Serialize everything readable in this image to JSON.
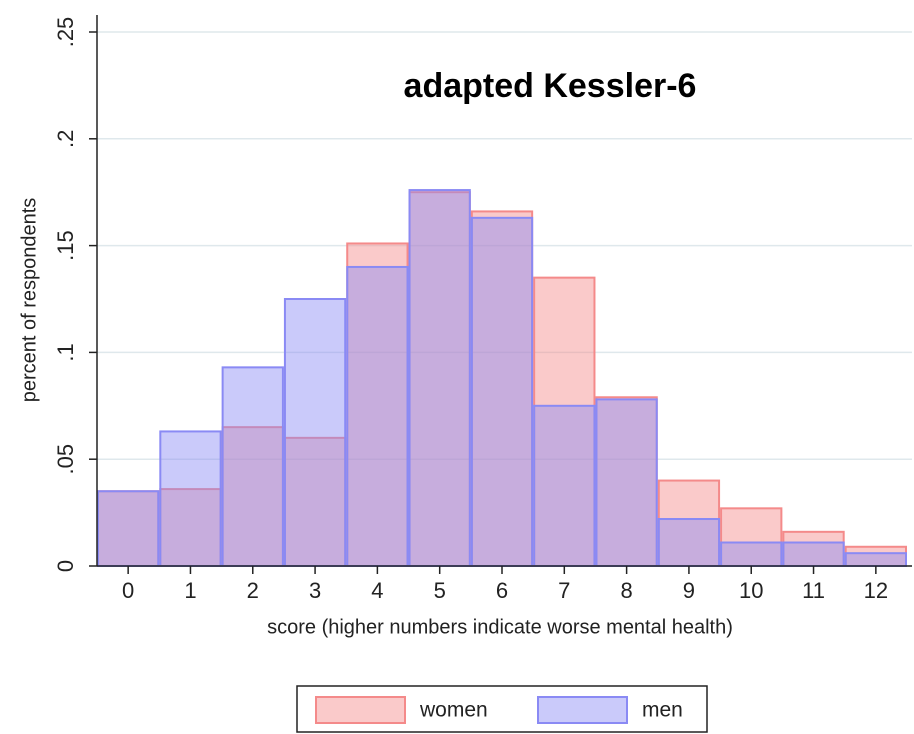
{
  "chart_data": {
    "type": "histogram",
    "title": "adapted Kessler-6",
    "x_label": "score (higher numbers indicate worse mental health)",
    "y_label": "percent of respondents",
    "bins": [
      -0.5,
      0.5,
      1.5,
      2.5,
      3.5,
      4.5,
      5.5,
      6.5,
      7.5,
      8.5,
      9.5,
      10.5,
      11.5,
      12.5
    ],
    "series": [
      {
        "name": "women",
        "color": "#f48a8a",
        "values": [
          0.035,
          0.036,
          0.065,
          0.06,
          0.151,
          0.175,
          0.166,
          0.135,
          0.079,
          0.04,
          0.027,
          0.016,
          0.009
        ]
      },
      {
        "name": "men",
        "color": "#8a8af4",
        "values": [
          0.035,
          0.063,
          0.093,
          0.125,
          0.14,
          0.176,
          0.163,
          0.075,
          0.078,
          0.022,
          0.011,
          0.011,
          0.006
        ]
      }
    ],
    "xlim": [
      -0.5,
      12.5
    ],
    "xticks": [
      0,
      1,
      2,
      3,
      4,
      5,
      6,
      7,
      8,
      9,
      10,
      11,
      12
    ],
    "ylim": [
      0,
      0.25
    ],
    "yticks": [
      0,
      {
        "value": 0.05,
        "label": ".05"
      },
      {
        "value": 0.1,
        "label": ".1"
      },
      {
        "value": 0.15,
        "label": ".15"
      },
      {
        "value": 0.2,
        "label": ".2"
      },
      {
        "value": 0.25,
        "label": ".25"
      }
    ],
    "grid": true
  }
}
